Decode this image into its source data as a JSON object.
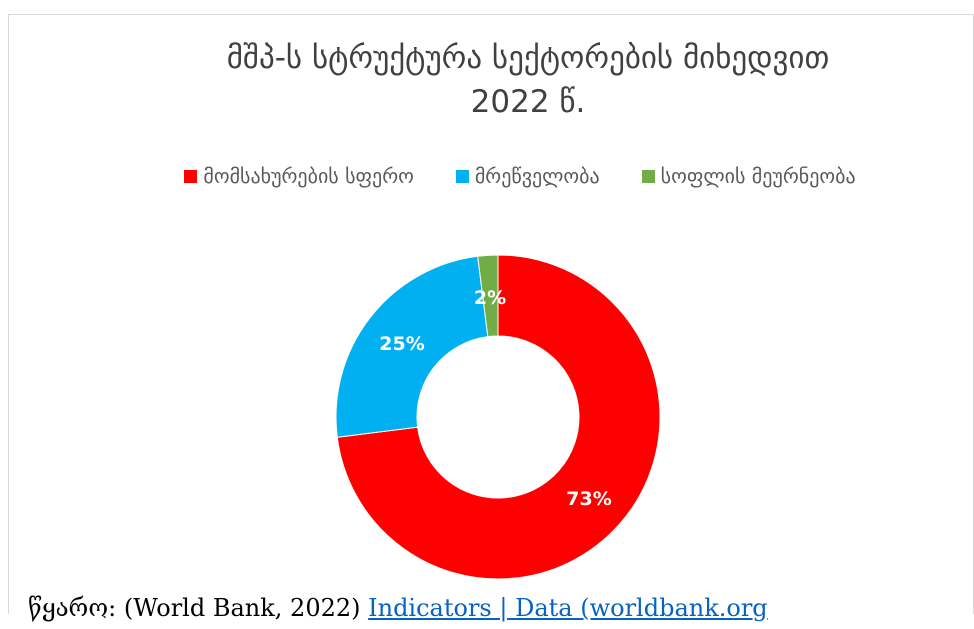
{
  "chart_data": {
    "type": "pie",
    "donut": true,
    "title_lines": [
      "მშპ-ს სტრუქტურა სექტორების მიხედვით",
      "2022 წ."
    ],
    "categories": [
      "მომსახურების სფერო",
      "მრეწველობა",
      "სოფლის მეურნეობა"
    ],
    "values": [
      73,
      25,
      2
    ],
    "labels": [
      "73%",
      "25%",
      "2%"
    ],
    "colors": [
      "#ff0000",
      "#00b0f0",
      "#70ad47"
    ],
    "legend_position": "top"
  },
  "source": {
    "prefix": "წყარო: (World Bank, 2022)",
    "link_text": "Indicators | Data (worldbank.org"
  }
}
